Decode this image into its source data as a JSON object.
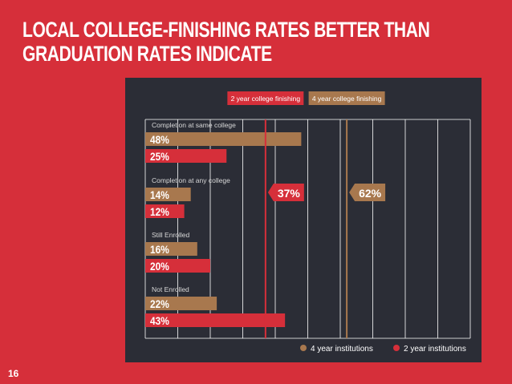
{
  "title_lines": [
    "LOCAL COLLEGE-FINISHING RATES BETTER THAN",
    "GRADUATION RATES INDICATE"
  ],
  "page_number": "16",
  "colors": {
    "background": "#d62f3a",
    "panel": "#2b2d36",
    "four_year": "#a8784e",
    "two_year": "#d62f3a",
    "grid": "#ffffff"
  },
  "chart_data": {
    "type": "bar",
    "orientation": "horizontal",
    "xlim": [
      0,
      100
    ],
    "grid": true,
    "groups": [
      {
        "label": "Completion  at  same college",
        "bars": [
          {
            "series": "4 year institutions",
            "value": 48,
            "label": "48%"
          },
          {
            "series": "2 year institutions",
            "value": 25,
            "label": "25%"
          }
        ]
      },
      {
        "label": "Completion  at any college",
        "bars": [
          {
            "series": "4 year institutions",
            "value": 14,
            "label": "14%"
          },
          {
            "series": "2 year institutions",
            "value": 12,
            "label": "12%"
          }
        ]
      },
      {
        "label": "Still Enrolled",
        "bars": [
          {
            "series": "4 year institutions",
            "value": 16,
            "label": "16%"
          },
          {
            "series": "2 year institutions",
            "value": 20,
            "label": "20%"
          }
        ]
      },
      {
        "label": "Not Enrolled",
        "bars": [
          {
            "series": "4 year institutions",
            "value": 22,
            "label": "22%"
          },
          {
            "series": "2 year institutions",
            "value": 43,
            "label": "43%"
          }
        ]
      }
    ],
    "reference_lines": [
      {
        "name": "2 year college finishing",
        "value": 37,
        "label": "37%",
        "series": "2 year institutions"
      },
      {
        "name": "4 year college finishing",
        "value": 62,
        "label": "62%",
        "series": "4 year institutions"
      }
    ],
    "legend": [
      {
        "name": "4 year institutions",
        "color": "#a8784e"
      },
      {
        "name": "2 year institutions",
        "color": "#d62f3a"
      }
    ],
    "legend_position": "bottom-right"
  }
}
